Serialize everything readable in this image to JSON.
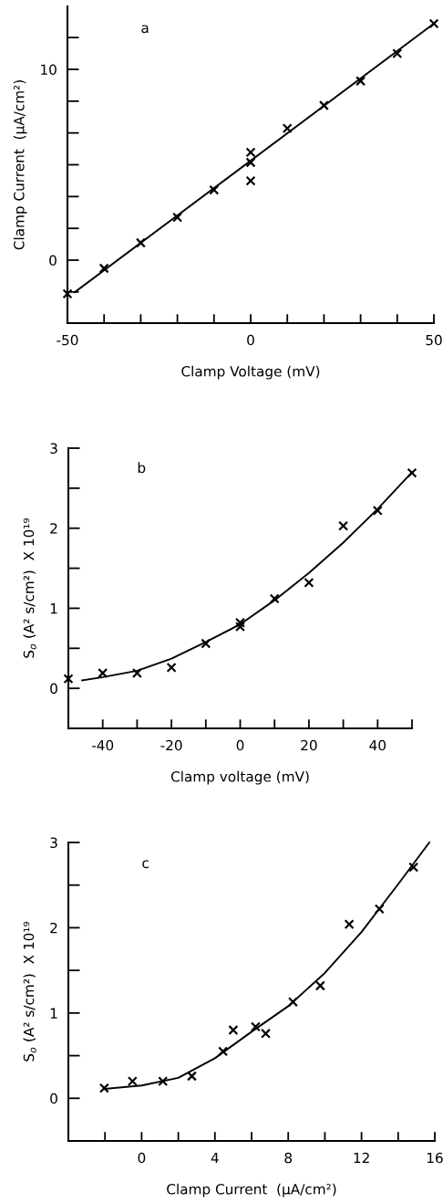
{
  "chart_data": [
    {
      "type": "scatter",
      "xlabel": "Clamp Voltage (mV)",
      "ylabel": "Clamp Current  (μA/cm²)",
      "annotations": [
        "a"
      ],
      "marker": "cross",
      "grid": false,
      "legend": false,
      "xlim": [
        -50,
        50
      ],
      "ylim": [
        -3.3,
        13.3
      ],
      "xticks": [
        -50,
        {
          "value": -40,
          "label": null
        },
        {
          "value": -30,
          "label": null
        },
        {
          "value": -20,
          "label": null
        },
        {
          "value": -10,
          "label": null
        },
        0,
        {
          "value": 10,
          "label": null
        },
        {
          "value": 20,
          "label": null
        },
        {
          "value": 30,
          "label": null
        },
        {
          "value": 40,
          "label": null
        },
        50
      ],
      "yticks": [
        {
          "value": -1.667,
          "label": null
        },
        0,
        {
          "value": 1.667,
          "label": null
        },
        {
          "value": 3.333,
          "label": null
        },
        {
          "value": 5,
          "label": null
        },
        {
          "value": 6.667,
          "label": null
        },
        {
          "value": 8.333,
          "label": null
        },
        10,
        {
          "value": 11.667,
          "label": null
        }
      ],
      "series": [
        {
          "color": "#000000",
          "x": [
            -50,
            -40,
            -30,
            -20,
            -10,
            0,
            0,
            0,
            10,
            20,
            30,
            40,
            50
          ],
          "values": [
            -1.76,
            -0.43,
            0.91,
            2.24,
            3.68,
            5.65,
            5.12,
            4.16,
            6.91,
            8.11,
            9.39,
            10.83,
            12.4
          ]
        },
        {
          "type": "line",
          "color": "#000000",
          "marker": "none",
          "x": [
            -48,
            50
          ],
          "values": [
            -1.68,
            12.4
          ]
        }
      ]
    },
    {
      "type": "scatter",
      "xlabel": "Clamp voltage (mV)",
      "ylabel": "S$_{o}$ (A² s/cm²)  X 10¹⁹",
      "annotations": [
        "b"
      ],
      "marker": "cross",
      "grid": false,
      "legend": false,
      "xlim": [
        -50,
        50
      ],
      "ylim": [
        -0.5,
        3
      ],
      "xticks": [
        {
          "value": -50,
          "label": null
        },
        -40,
        {
          "value": -30,
          "label": null
        },
        -20,
        {
          "value": -10,
          "label": null
        },
        0,
        {
          "value": 10,
          "label": null
        },
        20,
        {
          "value": 30,
          "label": null
        },
        40,
        {
          "value": 50,
          "label": null
        }
      ],
      "yticks": [
        0,
        {
          "value": 0.5,
          "label": null
        },
        1,
        {
          "value": 1.5,
          "label": null
        },
        2,
        {
          "value": 2.5,
          "label": null
        },
        3
      ],
      "series": [
        {
          "color": "#000000",
          "x": [
            -50,
            -40,
            -30,
            -20,
            -10,
            0,
            0,
            10,
            20,
            30,
            40,
            50
          ],
          "values": [
            0.12,
            0.19,
            0.19,
            0.26,
            0.56,
            0.82,
            0.77,
            1.12,
            1.32,
            2.03,
            2.22,
            2.69
          ]
        },
        {
          "type": "line",
          "color": "#000000",
          "marker": "none",
          "x": [
            -46,
            -40,
            -30,
            -20,
            -10,
            0,
            10,
            20,
            30,
            40,
            50
          ],
          "values": [
            0.1,
            0.14,
            0.22,
            0.37,
            0.58,
            0.8,
            1.1,
            1.44,
            1.82,
            2.24,
            2.7
          ]
        }
      ]
    },
    {
      "type": "scatter",
      "xlabel": "Clamp Current  (μA/cm²)",
      "ylabel": "S$_{o}$ (A² s/cm²)  X 10¹⁹",
      "annotations": [
        "c"
      ],
      "marker": "cross",
      "grid": false,
      "legend": false,
      "xlim": [
        -4,
        16
      ],
      "ylim": [
        -0.5,
        3
      ],
      "xticks": [
        {
          "value": -2,
          "label": null
        },
        0,
        {
          "value": 2,
          "label": null
        },
        4,
        {
          "value": 6,
          "label": null
        },
        8,
        {
          "value": 10,
          "label": null
        },
        12,
        {
          "value": 14,
          "label": null
        },
        16
      ],
      "yticks": [
        0,
        {
          "value": 0.5,
          "label": null
        },
        1,
        {
          "value": 1.5,
          "label": null
        },
        2,
        {
          "value": 2.5,
          "label": null
        },
        3
      ],
      "series": [
        {
          "color": "#000000",
          "x": [
            -2.04,
            -0.5,
            1.16,
            2.74,
            4.44,
            5.0,
            6.22,
            6.77,
            8.26,
            9.75,
            11.33,
            12.98,
            14.84
          ],
          "values": [
            0.12,
            0.2,
            0.2,
            0.26,
            0.55,
            0.8,
            0.84,
            0.76,
            1.13,
            1.32,
            2.04,
            2.22,
            2.71
          ]
        },
        {
          "type": "line",
          "color": "#000000",
          "marker": "none",
          "x": [
            -2,
            0,
            2,
            4,
            6,
            8,
            10,
            12,
            14,
            15.7
          ],
          "values": [
            0.11,
            0.15,
            0.24,
            0.47,
            0.78,
            1.08,
            1.47,
            1.95,
            2.51,
            3.0
          ]
        }
      ]
    }
  ]
}
